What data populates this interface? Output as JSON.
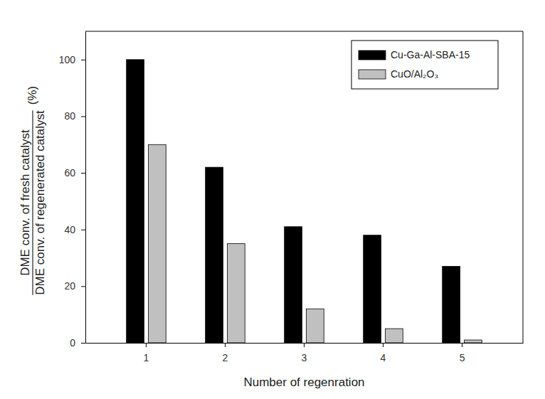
{
  "chart_data": {
    "type": "bar",
    "xlabel": "Number of regenration",
    "ylabel": {
      "numerator": "DME conv. of fresh catalyst",
      "denominator": "DME conv. of regenerated catalyst",
      "unit": "(%)"
    },
    "categories": [
      "1",
      "2",
      "3",
      "4",
      "5"
    ],
    "series": [
      {
        "name": "Cu-Ga-Al-SBA-15",
        "color": "#000000",
        "values": [
          100,
          62,
          41,
          38,
          27
        ]
      },
      {
        "name": "CuO/Al₂O₃",
        "color": "#c0c0c0",
        "values": [
          70,
          35,
          12,
          5,
          1
        ]
      }
    ],
    "ylim": [
      0,
      110
    ],
    "yticks": [
      0,
      20,
      40,
      60,
      80,
      100
    ],
    "grid": false,
    "legend": "upper right"
  }
}
